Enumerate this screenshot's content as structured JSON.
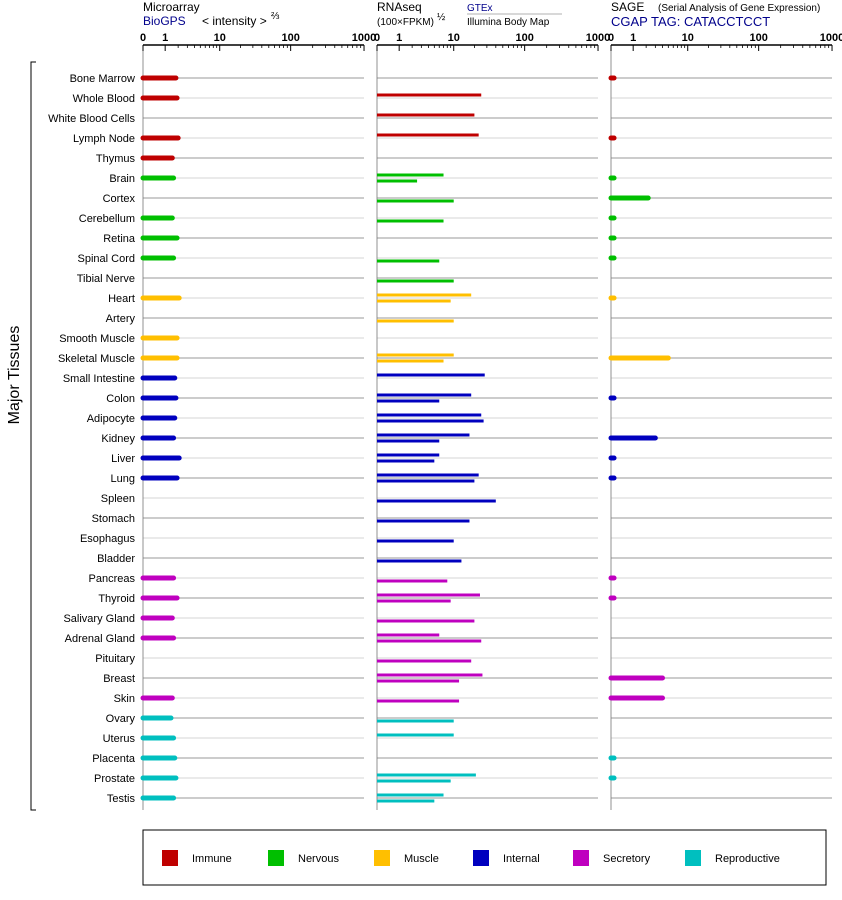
{
  "chart_data": {
    "type": "bar",
    "orientation": "horizontal",
    "y_axis_label": "Major Tissues",
    "x_scale": "log",
    "tick_labels": [
      "0",
      "1",
      "10",
      "100",
      "1000"
    ],
    "categories": [
      "Bone Marrow",
      "Whole Blood",
      "White Blood Cells",
      "Lymph Node",
      "Thymus",
      "Brain",
      "Cortex",
      "Cerebellum",
      "Retina",
      "Spinal Cord",
      "Tibial Nerve",
      "Heart",
      "Artery",
      "Smooth Muscle",
      "Skeletal Muscle",
      "Small Intestine",
      "Colon",
      "Adipocyte",
      "Kidney",
      "Liver",
      "Lung",
      "Spleen",
      "Stomach",
      "Esophagus",
      "Bladder",
      "Pancreas",
      "Thyroid",
      "Salivary Gland",
      "Adrenal Gland",
      "Pituitary",
      "Breast",
      "Skin",
      "Ovary",
      "Uterus",
      "Placenta",
      "Prostate",
      "Testis"
    ],
    "groups": [
      "immune",
      "immune",
      "immune",
      "immune",
      "immune",
      "nervous",
      "nervous",
      "nervous",
      "nervous",
      "nervous",
      "nervous",
      "muscle",
      "muscle",
      "muscle",
      "muscle",
      "internal",
      "internal",
      "internal",
      "internal",
      "internal",
      "internal",
      "internal",
      "internal",
      "internal",
      "internal",
      "secretory",
      "secretory",
      "secretory",
      "secretory",
      "secretory",
      "secretory",
      "secretory",
      "reproductive",
      "reproductive",
      "reproductive",
      "reproductive",
      "reproductive"
    ],
    "panels": [
      {
        "id": "microarray",
        "title": "Microarray",
        "source": "BioGPS",
        "unit_label": "< intensity >",
        "unit_superscript": "⅔",
        "values": [
          1.8,
          1.9,
          null,
          2.0,
          1.5,
          1.6,
          null,
          1.5,
          1.9,
          1.6,
          null,
          2.1,
          null,
          1.9,
          1.9,
          1.7,
          1.8,
          1.7,
          1.6,
          2.1,
          1.9,
          null,
          null,
          null,
          null,
          1.6,
          1.9,
          1.5,
          1.6,
          null,
          null,
          1.5,
          1.4,
          1.6,
          1.7,
          1.8,
          1.6
        ]
      },
      {
        "id": "rnaseq",
        "title": "RNAseq",
        "unit_label": "(100×FPKM)",
        "unit_superscript": "½",
        "series_labels": [
          "GTEx",
          "Illumina Body Map"
        ],
        "values_gtex": [
          null,
          25,
          20,
          23,
          null,
          7,
          null,
          null,
          null,
          null,
          null,
          18,
          null,
          null,
          10,
          28,
          18,
          25,
          17,
          6,
          23,
          null,
          null,
          null,
          null,
          null,
          24,
          null,
          6,
          null,
          26,
          null,
          null,
          10,
          null,
          21,
          7
        ],
        "values_ibm": [
          null,
          null,
          null,
          null,
          null,
          2.5,
          10,
          7,
          null,
          6,
          10,
          9,
          10,
          null,
          7,
          null,
          6,
          27,
          6,
          5,
          20,
          40,
          17,
          10,
          13,
          8,
          9,
          20,
          25,
          18,
          12,
          12,
          10,
          null,
          null,
          9,
          5
        ]
      },
      {
        "id": "sage",
        "title": "SAGE",
        "subtitle": "(Serial Analysis of Gene Expression)",
        "source": "CGAP TAG: CATACCTCCT",
        "values": [
          0.1,
          null,
          null,
          0.1,
          null,
          0.1,
          2.2,
          0.1,
          0.1,
          0.1,
          null,
          0.1,
          null,
          null,
          5.0,
          null,
          0.1,
          null,
          3.0,
          0.1,
          0.1,
          null,
          null,
          null,
          null,
          0.1,
          0.1,
          null,
          null,
          null,
          4.0,
          4.0,
          null,
          null,
          0.1,
          0.1,
          null
        ]
      }
    ],
    "legend": [
      {
        "key": "immune",
        "label": "Immune",
        "color": "#bf0000"
      },
      {
        "key": "nervous",
        "label": "Nervous",
        "color": "#00bf00"
      },
      {
        "key": "muscle",
        "label": "Muscle",
        "color": "#ffbf00"
      },
      {
        "key": "internal",
        "label": "Internal",
        "color": "#0000bf"
      },
      {
        "key": "secretory",
        "label": "Secretory",
        "color": "#bf00bf"
      },
      {
        "key": "reproductive",
        "label": "Reproductive",
        "color": "#00bfbf"
      }
    ]
  }
}
